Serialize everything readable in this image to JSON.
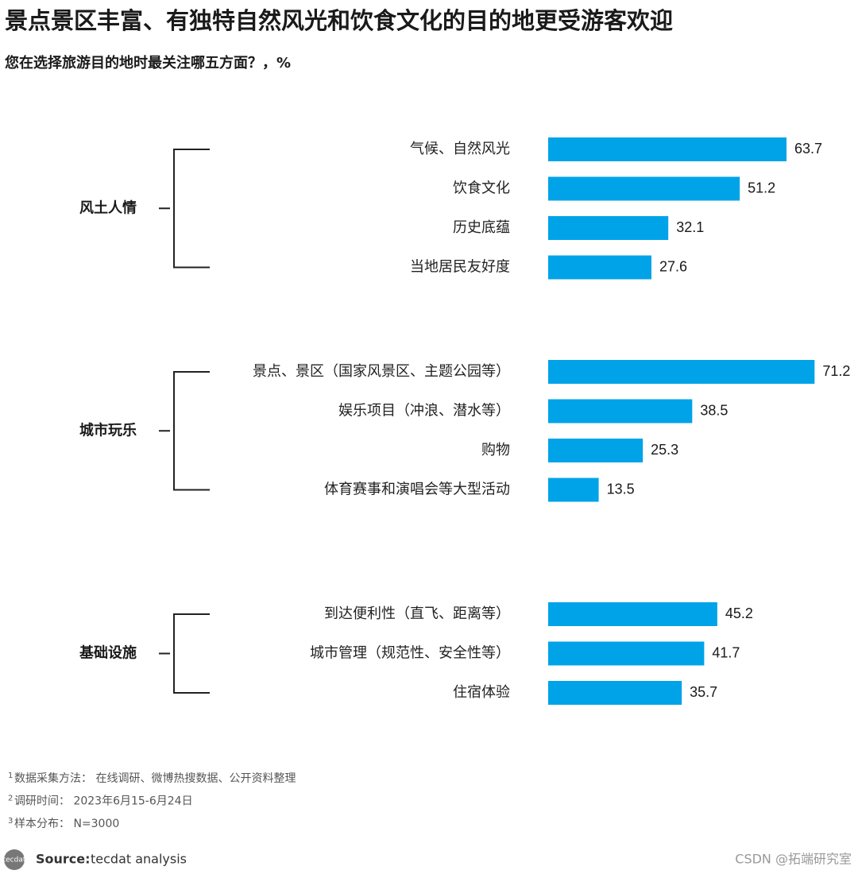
{
  "chart_data": {
    "type": "bar",
    "orientation": "horizontal",
    "title": "景点景区丰富、有独特自然风光和饮食文化的目的地更受游客欢迎",
    "subtitle": "您在选择旅游目的地时最关注哪五方面？，%",
    "color": "#00a3e8",
    "groups": [
      {
        "name": "风土人情",
        "categories": [
          "气候、自然风光",
          "饮食文化",
          "历史底蕴",
          "当地居民友好度"
        ],
        "values": [
          63.7,
          51.2,
          32.1,
          27.6
        ]
      },
      {
        "name": "城市玩乐",
        "categories": [
          "景点、景区（国家风景区、主题公园等）",
          "娱乐项目（冲浪、潜水等）",
          "购物",
          "体育赛事和演唱会等大型活动"
        ],
        "values": [
          71.2,
          38.5,
          25.3,
          13.5
        ]
      },
      {
        "name": "基础设施",
        "categories": [
          "到达便利性（直飞、距离等）",
          "城市管理（规范性、安全性等）",
          "住宿体验"
        ],
        "values": [
          45.2,
          41.7,
          35.7
        ]
      }
    ],
    "notes": [
      {
        "mark": "1",
        "text": "数据采集方法： 在线调研、微博热搜数据、公开资料整理"
      },
      {
        "mark": "2",
        "text": "调研时间： 2023年6月15-6月24日"
      },
      {
        "mark": "3",
        "text": "样本分布： N=3000"
      }
    ],
    "logo": "tecdat",
    "source_label": "Source:",
    "source": "tecdat analysis",
    "watermark": "CSDN @拓端研究室"
  }
}
